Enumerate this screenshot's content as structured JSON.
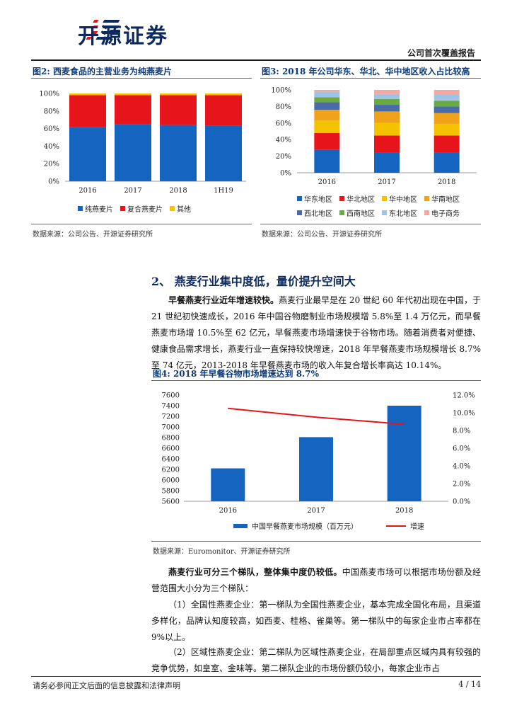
{
  "header": {
    "brand_name": "开源证券",
    "report_type": "公司首次覆盖报告"
  },
  "figure2": {
    "title": "图2:  西麦食品的主营业务为纯燕麦片",
    "source": "数据来源：公司公告、开源证券研究所"
  },
  "figure3": {
    "title": "图3:  2018 年公司华东、华北、华中地区收入占比较高",
    "source": "数据来源：公司公告、开源证券研究所"
  },
  "section": {
    "heading": "2、  燕麦行业集中度低，量价提升空间大",
    "p1_lead": "早餐燕麦行业近年增速较快。",
    "p1_body": "燕麦行业最早是在 20 世纪 60 年代初出现在中国，于 21 世纪初快速成长，2016 年中国谷物磨制业市场规模增 5.8%至 1.4 万亿元，而早餐燕麦市场增 10.5%至 62 亿元，早餐燕麦市场增速快于谷物市场。随着消费者对便捷、健康食品需求增长，燕麦行业一直保持较快增速，2018 年早餐燕麦市场规模增长 8.7%至 74 亿元，2013-2018 年早餐燕麦市场的收入年复合增长率高达 10.14%。",
    "p2_lead": "燕麦行业可分三个梯队，整体集中度仍较低。",
    "p2_body": "中国燕麦市场可以根据市场份额及经营范围大小分为三个梯队：",
    "p3": "（1）全国性燕麦企业：第一梯队为全国性燕麦企业，基本完成全国化布局，且渠道多样化，品牌认知度较高，如西麦、桂格、雀巢等。第一梯队中的每家企业市占率都在 9%以上。",
    "p4": "（2）区域性燕麦企业：第二梯队为区域性燕麦企业，在局部重点区域内具有较强的竞争优势，如皇室、金味等。第二梯队企业的市场份额仍较小，每家企业市占"
  },
  "figure4": {
    "title": "图4:  2018 年早餐谷物市场增速达到 8.7%",
    "source": "数据来源：Euromonitor、开源证券研究所"
  },
  "footer": {
    "note": "请务必参阅正文后面的信息披露和法律声明",
    "page": "4 / 14"
  },
  "colors": {
    "navy": "#0c2a5e",
    "blue": "#1565c0",
    "red": "#e8141b",
    "yellow": "#f5c200",
    "orange": "#f0a31a",
    "green": "#6aaa43",
    "grayblue": "#4a6aa8",
    "lightblue": "#9dc3e6",
    "pink": "#f4a9a0"
  },
  "chart_data": [
    {
      "id": "fig2",
      "type": "bar",
      "stacked": true,
      "categories": [
        "2016",
        "2017",
        "2018",
        "1H19"
      ],
      "series": [
        {
          "name": "纯燕麦片",
          "color": "#1565c0",
          "values": [
            62,
            65,
            64,
            63
          ]
        },
        {
          "name": "复合燕麦片",
          "color": "#e8141b",
          "values": [
            36,
            33,
            34,
            35
          ]
        },
        {
          "name": "其他",
          "color": "#f5c200",
          "values": [
            2,
            2,
            2,
            2
          ]
        }
      ],
      "ylim": [
        0,
        100
      ],
      "yticks": [
        "0%",
        "20%",
        "40%",
        "60%",
        "80%",
        "100%"
      ],
      "legend": "bottom"
    },
    {
      "id": "fig3",
      "type": "bar",
      "stacked": true,
      "categories": [
        "2016",
        "2017",
        "2018"
      ],
      "series": [
        {
          "name": "华东地区",
          "color": "#1565c0",
          "values": [
            28,
            24,
            24
          ]
        },
        {
          "name": "华北地区",
          "color": "#e8141b",
          "values": [
            20,
            21,
            21
          ]
        },
        {
          "name": "华中地区",
          "color": "#f5c200",
          "values": [
            15,
            15,
            14
          ]
        },
        {
          "name": "华南地区",
          "color": "#f0a31a",
          "values": [
            13,
            14,
            13
          ]
        },
        {
          "name": "西北地区",
          "color": "#4a6aa8",
          "values": [
            9,
            8,
            8
          ]
        },
        {
          "name": "西南地区",
          "color": "#6aaa43",
          "values": [
            6,
            7,
            7
          ]
        },
        {
          "name": "东北地区",
          "color": "#9dc3e6",
          "values": [
            7,
            6,
            7
          ]
        },
        {
          "name": "电子商务",
          "color": "#f4a9a0",
          "values": [
            2,
            5,
            6
          ]
        }
      ],
      "ylim": [
        0,
        100
      ],
      "yticks": [
        "0%",
        "20%",
        "40%",
        "60%",
        "80%",
        "100%"
      ],
      "legend": "bottom"
    },
    {
      "id": "fig4",
      "type": "bar",
      "categories": [
        "2016",
        "2017",
        "2018"
      ],
      "series": [
        {
          "name": "中国早餐燕麦市场规模（百万元）",
          "color": "#1565c0",
          "type": "bar",
          "axis": "left",
          "values": [
            6220,
            6808,
            7400
          ]
        },
        {
          "name": "增速",
          "color": "#e8141b",
          "type": "line",
          "axis": "right",
          "values": [
            10.5,
            9.5,
            8.7
          ]
        }
      ],
      "ylim": [
        5600,
        7600
      ],
      "yticks": [
        "5600",
        "5800",
        "6000",
        "6200",
        "6400",
        "6600",
        "6800",
        "7000",
        "7200",
        "7400",
        "7600"
      ],
      "y2lim": [
        0,
        12
      ],
      "y2ticks": [
        "0.0%",
        "2.0%",
        "4.0%",
        "6.0%",
        "8.0%",
        "10.0%",
        "12.0%"
      ],
      "legend": "bottom"
    }
  ]
}
